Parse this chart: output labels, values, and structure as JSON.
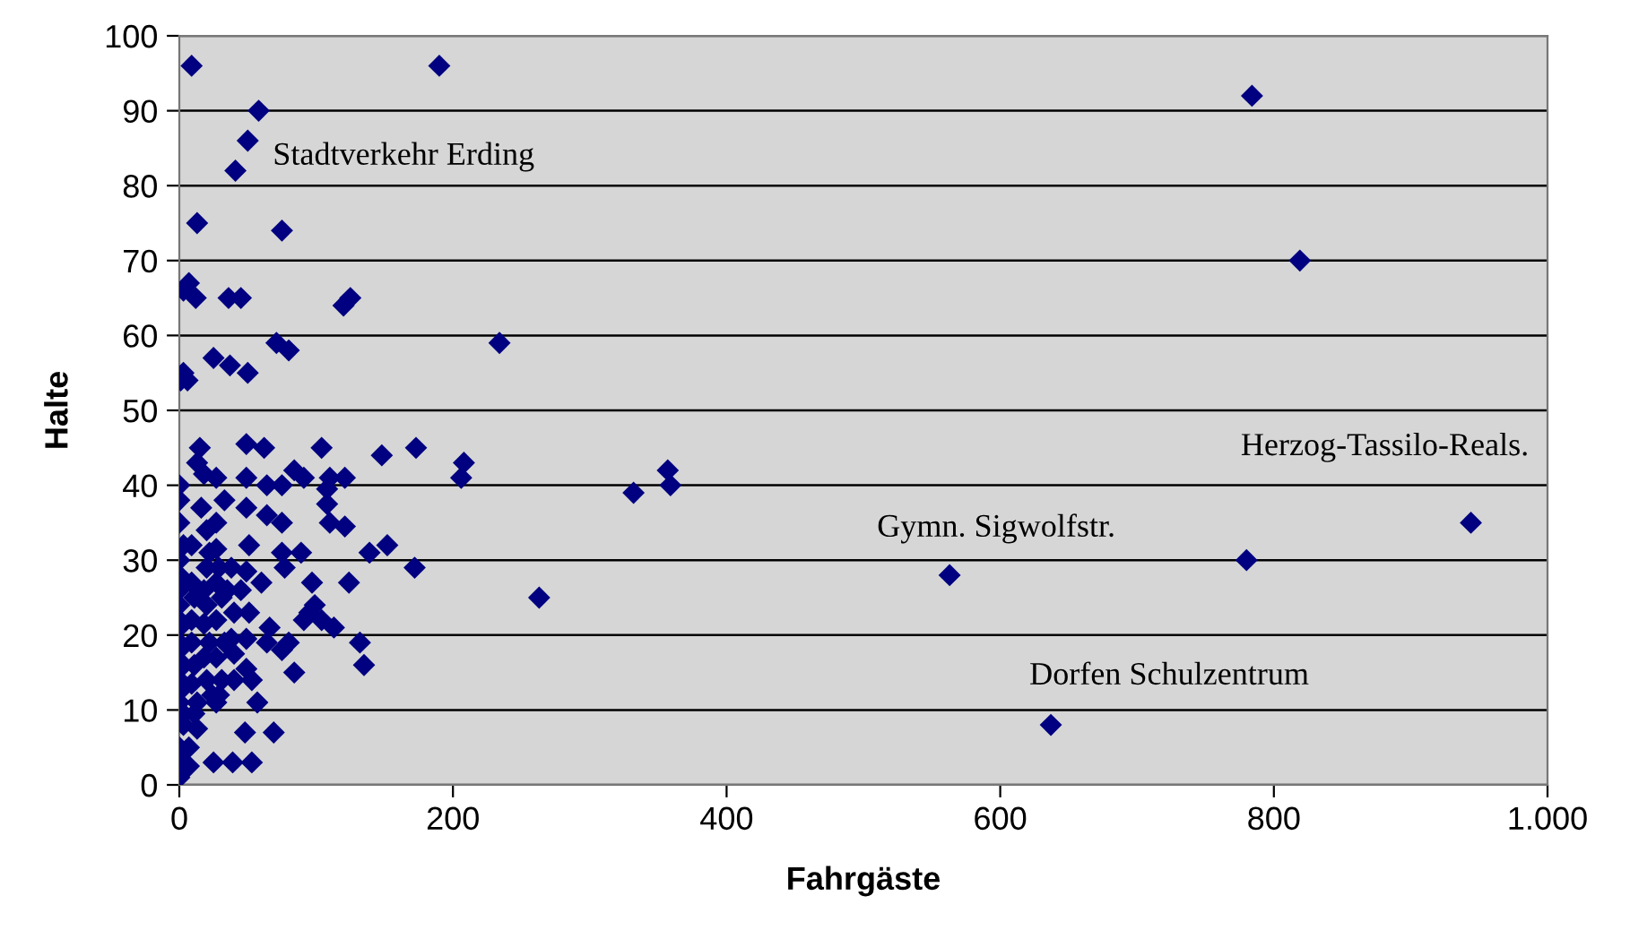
{
  "chart_data": {
    "type": "scatter",
    "xlabel": "Fahrgäste",
    "ylabel": "Halte",
    "xlim": [
      0,
      1000
    ],
    "ylim": [
      0,
      100
    ],
    "xticks": [
      0,
      200,
      400,
      600,
      800,
      {
        "value": 1000,
        "label": "1.000"
      }
    ],
    "yticks": [
      0,
      10,
      20,
      30,
      40,
      50,
      60,
      70,
      80,
      90,
      100
    ],
    "grid": "y",
    "marker": "diamond",
    "legend": false,
    "annotations": [
      {
        "text": "Stadtverkehr Erding",
        "x": 50,
        "y": 86
      },
      {
        "text": "Herzog-Tassilo-Reals.",
        "x": 944,
        "y": 35
      },
      {
        "text": "Gymn. Sigwolfstr.",
        "x": 563,
        "y": 28
      },
      {
        "text": "Dorfen Schulzentrum",
        "x": 637,
        "y": 8
      }
    ],
    "series": [
      {
        "color": "#000080",
        "x": [
          9,
          190,
          58,
          50,
          41,
          13,
          75,
          3,
          7,
          12,
          36,
          45,
          120,
          125,
          234,
          71,
          80,
          25,
          37,
          50,
          3,
          6,
          1,
          784,
          819,
          332,
          357,
          359,
          263,
          563,
          780,
          944,
          637,
          15,
          49,
          62,
          104,
          148,
          173,
          208,
          206,
          0,
          0,
          0,
          3,
          0,
          0,
          0,
          0,
          0,
          0,
          0,
          0,
          3,
          0,
          3,
          0,
          3,
          3,
          0,
          3,
          0,
          9,
          9,
          11,
          9,
          9,
          11,
          9,
          13,
          11,
          13,
          7,
          7,
          16,
          13,
          18,
          20,
          22,
          20,
          18,
          20,
          18,
          22,
          18,
          20,
          24,
          27,
          27,
          27,
          27,
          29,
          27,
          31,
          27,
          33,
          27,
          31,
          29,
          25,
          33,
          38,
          35,
          40,
          38,
          40,
          40,
          39,
          49,
          49,
          51,
          49,
          45,
          51,
          49,
          49,
          53,
          48,
          53,
          64,
          64,
          60,
          66,
          64,
          57,
          69,
          75,
          75,
          75,
          77,
          80,
          75,
          84,
          84,
          91,
          89,
          91,
          95,
          97,
          99,
          104,
          113,
          110,
          121,
          108,
          108,
          110,
          121,
          124,
          132,
          135,
          139,
          152,
          172
        ],
        "values": [
          96,
          96,
          90,
          86,
          82,
          75,
          74,
          66,
          67,
          65,
          65,
          65,
          64,
          65,
          59,
          59,
          58,
          57,
          56,
          55,
          55,
          54,
          54,
          92,
          70,
          39,
          42,
          40,
          25,
          28,
          30,
          35,
          8,
          45,
          45.5,
          45,
          45,
          44,
          45,
          43,
          41,
          40,
          38,
          35,
          32,
          30,
          28,
          26,
          24,
          22,
          21,
          19,
          18,
          16,
          14,
          13,
          11,
          9.5,
          8,
          5,
          3,
          1,
          32,
          27,
          25,
          22,
          19,
          16,
          13.5,
          11,
          9.5,
          7.5,
          5,
          2.5,
          37,
          43,
          41.5,
          34,
          31,
          29,
          26,
          24,
          21.5,
          19,
          17,
          14,
          12,
          11,
          41,
          35,
          31.5,
          29,
          27,
          25,
          22,
          19,
          17,
          14,
          12,
          3,
          38,
          29,
          26,
          23,
          19.5,
          17.5,
          14,
          3,
          41,
          37,
          32,
          28.5,
          26,
          23,
          19.5,
          15.5,
          14,
          7,
          3,
          40,
          36,
          27,
          21,
          19,
          11,
          7,
          40,
          35,
          31,
          29,
          19,
          18,
          15,
          42,
          41,
          31,
          22,
          23,
          27,
          24,
          22,
          21,
          41,
          41,
          39.5,
          37.5,
          35,
          34.5,
          27,
          19,
          16,
          31,
          32,
          29
        ]
      }
    ]
  }
}
